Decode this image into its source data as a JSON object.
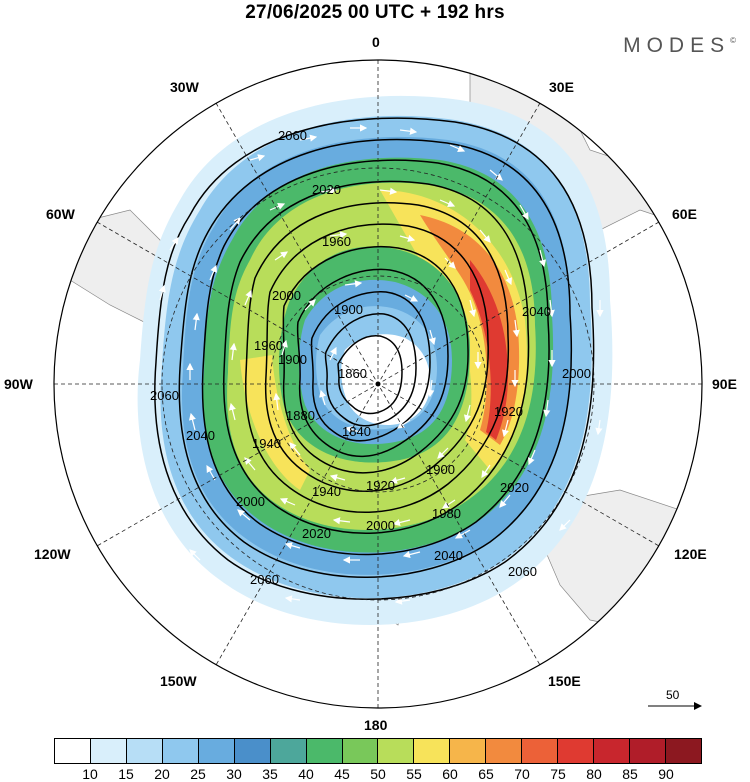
{
  "title": "27/06/2025  00 UTC  + 192 hrs",
  "brand": "MODES",
  "brand_mark": "©",
  "longitude_labels": {
    "n": "0",
    "ne30": "30E",
    "ne60": "60E",
    "e": "90E",
    "se120": "120E",
    "se150": "150E",
    "s": "180",
    "sw150": "150W",
    "sw120": "120W",
    "w": "90W",
    "nw60": "60W",
    "nw30": "30W"
  },
  "contour_labels": [
    "2060",
    "2020",
    "1960",
    "2000",
    "1900",
    "1900",
    "1860",
    "1880",
    "1840",
    "1940",
    "1920",
    "1940",
    "1980",
    "2000",
    "2020",
    "2000",
    "2040",
    "2060",
    "2060",
    "2040",
    "2060",
    "2040",
    "2000",
    "1920",
    "2020",
    "1900",
    "1960"
  ],
  "reference_vector": "50",
  "colorbar": {
    "colors": [
      "#ffffff",
      "#d9effb",
      "#b7def6",
      "#8fc8ee",
      "#68acdf",
      "#4a8fca",
      "#4da79b",
      "#4bb96a",
      "#79c85a",
      "#b8dd5a",
      "#f7e35a",
      "#f6b54a",
      "#f28a3e",
      "#ec6138",
      "#df3a31",
      "#c8262d",
      "#b01d29",
      "#8c1820"
    ],
    "tick_labels": [
      "10",
      "15",
      "20",
      "25",
      "30",
      "35",
      "40",
      "45",
      "50",
      "55",
      "60",
      "65",
      "70",
      "75",
      "80",
      "85",
      "90"
    ]
  }
}
